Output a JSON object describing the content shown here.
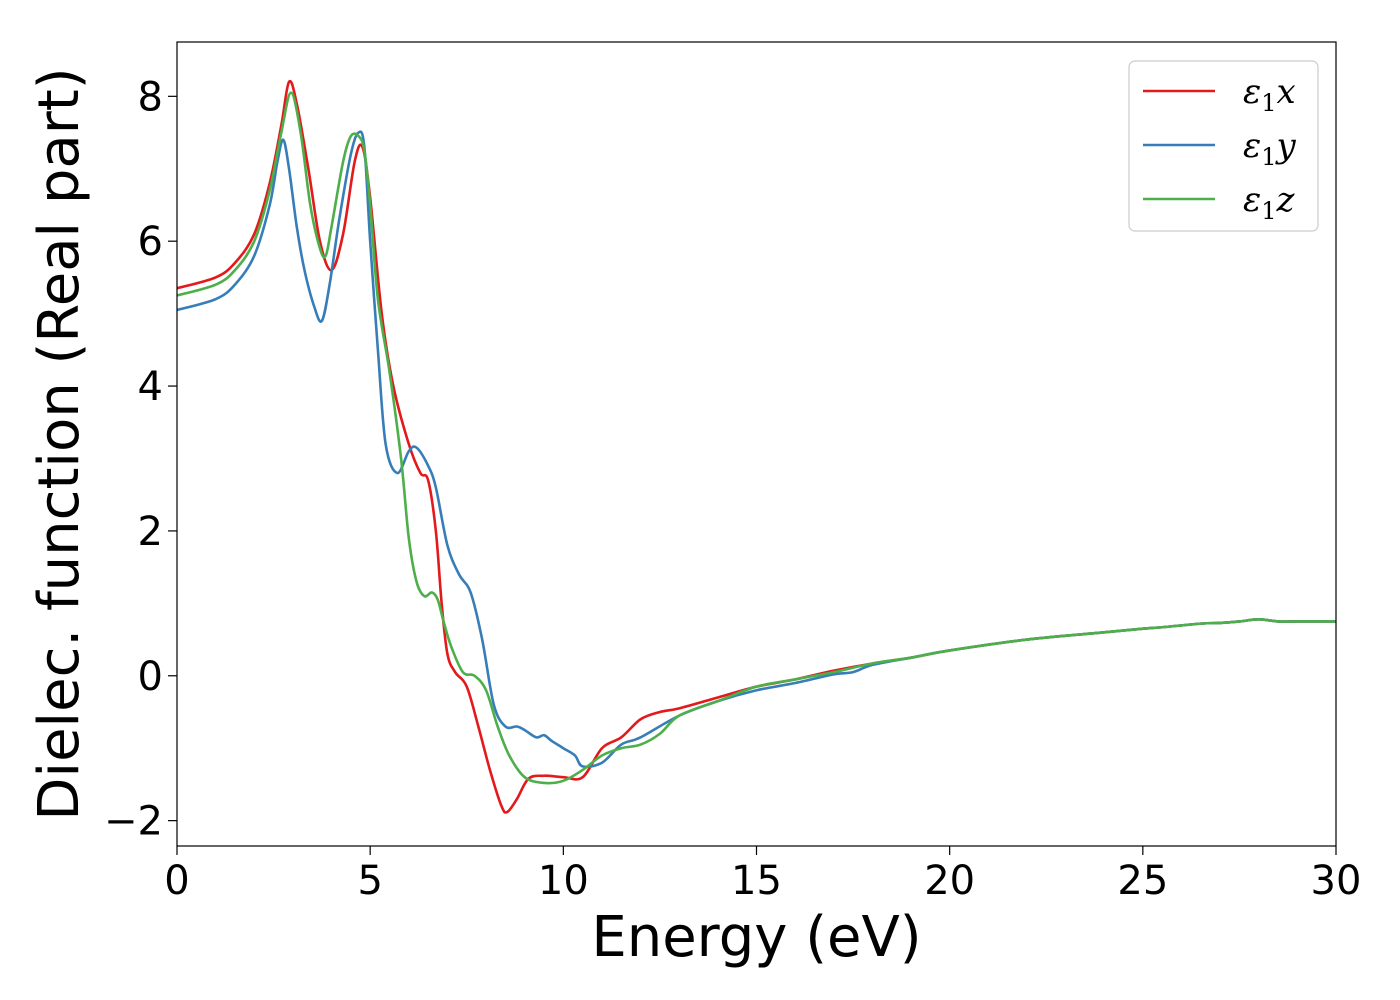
{
  "chart_data": {
    "type": "line",
    "title": "",
    "xlabel": "Energy (eV)",
    "ylabel": "Dielec. function (Real part)",
    "xlim": [
      0,
      30
    ],
    "ylim": [
      -2.35,
      8.75
    ],
    "xticks": [
      0,
      5,
      10,
      15,
      20,
      25,
      30
    ],
    "yticks": [
      -2,
      0,
      2,
      4,
      6,
      8
    ],
    "xtick_labels": [
      "0",
      "5",
      "10",
      "15",
      "20",
      "25",
      "30"
    ],
    "ytick_labels": [
      "−2",
      "0",
      "2",
      "4",
      "6",
      "8"
    ],
    "grid": false,
    "legend_position": "top-right",
    "series": [
      {
        "name": "ε1x",
        "legend_main": "ε",
        "legend_sub": "1",
        "legend_var": "x",
        "color": "#e31a1c",
        "x": [
          0,
          1,
          1.5,
          2.0,
          2.4,
          2.7,
          2.9,
          3.1,
          3.4,
          3.7,
          4.0,
          4.3,
          4.6,
          4.8,
          5.0,
          5.3,
          5.6,
          6.0,
          6.3,
          6.5,
          6.7,
          6.85,
          7.0,
          7.2,
          7.5,
          7.8,
          8.1,
          8.4,
          8.55,
          8.8,
          9.1,
          9.5,
          10.0,
          10.5,
          11.0,
          11.5,
          12.0,
          12.5,
          13.0,
          14.0,
          15.0,
          16.0,
          17.0,
          18.0,
          19.0,
          20.0,
          22.0,
          24.0,
          25.0,
          25.5,
          26.5,
          27.0,
          27.5,
          28.0,
          28.5,
          29.0,
          30.0
        ],
        "y": [
          5.35,
          5.5,
          5.7,
          6.1,
          6.8,
          7.6,
          8.2,
          7.9,
          7.0,
          6.0,
          5.6,
          6.1,
          7.1,
          7.3,
          6.6,
          5.0,
          4.0,
          3.2,
          2.8,
          2.7,
          2.0,
          1.0,
          0.3,
          0.05,
          -0.15,
          -0.7,
          -1.3,
          -1.8,
          -1.88,
          -1.7,
          -1.42,
          -1.38,
          -1.4,
          -1.4,
          -1.0,
          -0.85,
          -0.6,
          -0.5,
          -0.45,
          -0.3,
          -0.15,
          -0.05,
          0.07,
          0.17,
          0.25,
          0.35,
          0.5,
          0.6,
          0.65,
          0.67,
          0.72,
          0.73,
          0.75,
          0.78,
          0.75,
          0.75,
          0.75
        ]
      },
      {
        "name": "ε1y",
        "legend_main": "ε",
        "legend_sub": "1",
        "legend_var": "y",
        "color": "#377eb8",
        "x": [
          0,
          1,
          1.5,
          2.0,
          2.4,
          2.6,
          2.75,
          2.9,
          3.1,
          3.3,
          3.55,
          3.75,
          3.95,
          4.2,
          4.5,
          4.7,
          4.85,
          5.0,
          5.2,
          5.4,
          5.7,
          6.0,
          6.2,
          6.5,
          6.7,
          7.0,
          7.3,
          7.6,
          7.9,
          8.2,
          8.5,
          8.8,
          9.0,
          9.3,
          9.5,
          9.7,
          10.0,
          10.3,
          10.5,
          11.0,
          11.5,
          12.0,
          13.0,
          14.0,
          15.0,
          16.0,
          17.0,
          17.5,
          18.0,
          19.0,
          20.0,
          22.0,
          24.0,
          25.0,
          25.5,
          26.5,
          27.0,
          27.5,
          28.0,
          28.5,
          29.0,
          30.0
        ],
        "y": [
          5.05,
          5.2,
          5.4,
          5.8,
          6.5,
          7.1,
          7.4,
          7.0,
          6.2,
          5.6,
          5.1,
          4.9,
          5.4,
          6.3,
          7.2,
          7.5,
          7.3,
          6.0,
          4.5,
          3.2,
          2.8,
          3.1,
          3.15,
          2.9,
          2.6,
          1.8,
          1.4,
          1.15,
          0.5,
          -0.4,
          -0.7,
          -0.7,
          -0.75,
          -0.85,
          -0.82,
          -0.9,
          -1.0,
          -1.1,
          -1.25,
          -1.2,
          -0.95,
          -0.85,
          -0.55,
          -0.35,
          -0.2,
          -0.1,
          0.02,
          0.05,
          0.15,
          0.25,
          0.35,
          0.5,
          0.6,
          0.65,
          0.67,
          0.72,
          0.73,
          0.75,
          0.78,
          0.75,
          0.75,
          0.75
        ]
      },
      {
        "name": "ε1z",
        "legend_main": "ε",
        "legend_sub": "1",
        "legend_var": "z",
        "color": "#4daf4a",
        "x": [
          0,
          1,
          1.5,
          2.0,
          2.4,
          2.7,
          2.95,
          3.2,
          3.45,
          3.7,
          3.85,
          4.0,
          4.3,
          4.5,
          4.7,
          4.85,
          5.0,
          5.2,
          5.5,
          5.8,
          6.0,
          6.2,
          6.4,
          6.6,
          6.75,
          6.9,
          7.1,
          7.4,
          7.7,
          8.0,
          8.3,
          8.6,
          9.0,
          9.5,
          10.0,
          10.5,
          11.0,
          11.5,
          12.0,
          12.5,
          13.0,
          14.0,
          15.0,
          16.0,
          17.0,
          18.0,
          19.0,
          20.0,
          22.0,
          24.0,
          25.0,
          25.5,
          26.5,
          27.0,
          27.5,
          28.0,
          28.5,
          29.0,
          30.0
        ],
        "y": [
          5.25,
          5.4,
          5.6,
          6.0,
          6.7,
          7.5,
          8.05,
          7.5,
          6.5,
          5.9,
          5.8,
          6.2,
          7.1,
          7.45,
          7.45,
          7.25,
          6.5,
          5.2,
          4.2,
          3.0,
          1.9,
          1.3,
          1.1,
          1.15,
          1.05,
          0.75,
          0.4,
          0.05,
          0.0,
          -0.2,
          -0.7,
          -1.1,
          -1.4,
          -1.48,
          -1.45,
          -1.3,
          -1.1,
          -1.0,
          -0.95,
          -0.8,
          -0.55,
          -0.35,
          -0.15,
          -0.05,
          0.05,
          0.17,
          0.25,
          0.35,
          0.5,
          0.6,
          0.65,
          0.67,
          0.72,
          0.73,
          0.75,
          0.78,
          0.75,
          0.75,
          0.75
        ]
      }
    ]
  }
}
